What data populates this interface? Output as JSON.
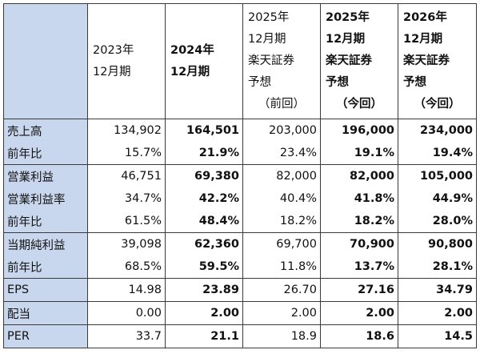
{
  "headers": [
    {
      "lines": [
        "2023年",
        "12月期"
      ]
    },
    {
      "lines": [
        "2024年",
        "12月期"
      ]
    },
    {
      "lines": [
        "2025年",
        "12月期",
        "楽天証券",
        "予想",
        "（前回）"
      ]
    },
    {
      "lines": [
        "2025年",
        "12月期",
        "楽天証券",
        "予想",
        "（今回）"
      ]
    },
    {
      "lines": [
        "2026年",
        "12月期",
        "楽天証券",
        "予想",
        "（今回）"
      ]
    }
  ],
  "rows": [
    {
      "label": "売上高",
      "values": [
        "134,902",
        "164,501",
        "203,000",
        "196,000",
        "234,000"
      ]
    },
    {
      "label": "前年比",
      "values": [
        "15.7%",
        "21.9%",
        "23.4%",
        "19.1%",
        "19.4%"
      ]
    },
    {
      "label": "営業利益",
      "values": [
        "46,751",
        "69,380",
        "82,000",
        "82,000",
        "105,000"
      ]
    },
    {
      "label": "営業利益率",
      "values": [
        "34.7%",
        "42.2%",
        "40.4%",
        "41.8%",
        "44.9%"
      ]
    },
    {
      "label": "前年比",
      "values": [
        "61.5%",
        "48.4%",
        "18.2%",
        "18.2%",
        "28.0%"
      ]
    },
    {
      "label": "当期純利益",
      "values": [
        "39,098",
        "62,360",
        "69,700",
        "70,900",
        "90,800"
      ]
    },
    {
      "label": "前年比",
      "values": [
        "68.5%",
        "59.5%",
        "11.8%",
        "13.7%",
        "28.1%"
      ]
    },
    {
      "label": "EPS",
      "values": [
        "14.98",
        "23.89",
        "26.70",
        "27.16",
        "34.79"
      ]
    },
    {
      "label": "配当",
      "values": [
        "0.00",
        "2.00",
        "2.00",
        "2.00",
        "2.00"
      ]
    },
    {
      "label": "PER",
      "values": [
        "33.7",
        "21.1",
        "18.9",
        "18.6",
        "14.5"
      ]
    }
  ],
  "colors": {
    "label_bg": "#c9d7ee",
    "border": "#3a3a3a"
  }
}
